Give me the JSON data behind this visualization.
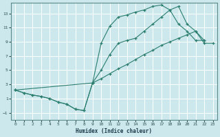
{
  "xlabel": "Humidex (Indice chaleur)",
  "xlim": [
    -0.5,
    23.5
  ],
  "ylim": [
    -2.0,
    14.5
  ],
  "yticks": [
    -1,
    1,
    3,
    5,
    7,
    9,
    11,
    13
  ],
  "xticks": [
    0,
    1,
    2,
    3,
    4,
    5,
    6,
    7,
    8,
    9,
    10,
    11,
    12,
    13,
    14,
    15,
    16,
    17,
    18,
    19,
    20,
    21,
    22,
    23
  ],
  "bg_color": "#cce8ec",
  "line_color": "#2a7d6e",
  "grid_color": "#ffffff",
  "line1_x": [
    0,
    1,
    2,
    3,
    4,
    5,
    6,
    7,
    8,
    9,
    10,
    11,
    12,
    13,
    14,
    15,
    16,
    17,
    18,
    19,
    20,
    21,
    22
  ],
  "line1_y": [
    2.2,
    1.8,
    1.5,
    1.3,
    1.0,
    0.5,
    0.2,
    -0.5,
    -0.7,
    3.2,
    8.8,
    11.2,
    12.5,
    12.8,
    13.2,
    13.5,
    14.0,
    14.2,
    13.5,
    11.5,
    10.5,
    9.2,
    9.2
  ],
  "line2_x": [
    0,
    1,
    2,
    3,
    4,
    5,
    6,
    7,
    8,
    9,
    10,
    11,
    12,
    13,
    14,
    15,
    16,
    17,
    18,
    19,
    20,
    21,
    22
  ],
  "line2_y": [
    2.2,
    1.8,
    1.5,
    1.3,
    1.0,
    0.5,
    0.2,
    -0.5,
    -0.7,
    3.2,
    5.0,
    7.2,
    8.8,
    9.2,
    9.5,
    10.5,
    11.5,
    12.5,
    13.5,
    14.0,
    11.5,
    10.5,
    9.2
  ],
  "line3_x": [
    0,
    9,
    10,
    11,
    12,
    13,
    14,
    15,
    16,
    17,
    18,
    19,
    20,
    21,
    22,
    23
  ],
  "line3_y": [
    2.2,
    3.2,
    3.8,
    4.5,
    5.2,
    5.8,
    6.5,
    7.2,
    7.8,
    8.5,
    9.0,
    9.5,
    10.0,
    10.5,
    8.8,
    8.8
  ]
}
